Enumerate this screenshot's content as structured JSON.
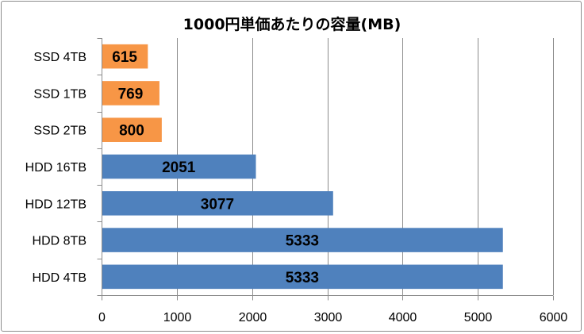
{
  "chart_data": {
    "type": "bar",
    "orientation": "horizontal",
    "title": "1000円単価あたりの容量(MB)",
    "xlabel": "",
    "ylabel": "",
    "categories": [
      "SSD 4TB",
      "SSD 1TB",
      "SSD 2TB",
      "HDD 16TB",
      "HDD 12TB",
      "HDD 8TB",
      "HDD 4TB"
    ],
    "values": [
      615,
      769,
      800,
      2051,
      3077,
      5333,
      5333
    ],
    "bar_colors": [
      "#f79646",
      "#f79646",
      "#f79646",
      "#4f81bd",
      "#4f81bd",
      "#4f81bd",
      "#4f81bd"
    ],
    "data_labels": [
      "615",
      "769",
      "800",
      "2051",
      "3077",
      "5333",
      "5333"
    ],
    "xlim": [
      0,
      6000
    ],
    "x_ticks": [
      0,
      1000,
      2000,
      3000,
      4000,
      5000,
      6000
    ],
    "x_tick_labels": [
      "0",
      "1000",
      "2000",
      "3000",
      "4000",
      "5000",
      "6000"
    ],
    "grid": "vertical-major",
    "legend": "none"
  }
}
